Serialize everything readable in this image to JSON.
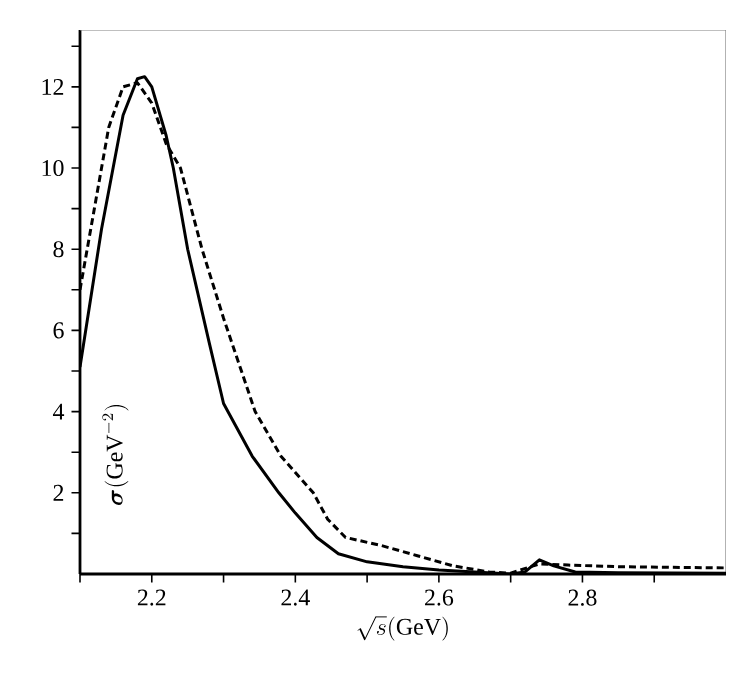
{
  "chart_data": {
    "type": "line",
    "xlabel": "\\sqrt{s}(\\mathrm{GeV})",
    "ylabel": "\\boldsymbol{\\sigma}(\\mathrm{GeV}^{-2})",
    "xlim": [
      2.1,
      3.0
    ],
    "ylim": [
      0,
      13.4
    ],
    "xticks": [
      {
        "value": 2.1,
        "label": null
      },
      2.2,
      {
        "value": 2.3,
        "label": null
      },
      2.4,
      {
        "value": 2.5,
        "label": null
      },
      2.6,
      {
        "value": 2.7,
        "label": null
      },
      2.8,
      {
        "value": 2.9,
        "label": null
      }
    ],
    "yticks": [
      {
        "value": 1,
        "label": null
      },
      2,
      {
        "value": 3,
        "label": null
      },
      4,
      {
        "value": 5,
        "label": null
      },
      6,
      {
        "value": 7,
        "label": null
      },
      8,
      {
        "value": 9,
        "label": null
      },
      10,
      {
        "value": 11,
        "label": null
      },
      12,
      {
        "value": 13,
        "label": null
      }
    ],
    "marker": "none",
    "series": [
      {
        "color": "#000000",
        "line_style": "solid",
        "x": [
          2.1,
          2.13,
          2.16,
          2.18,
          2.19,
          2.2,
          2.22,
          2.23,
          2.25,
          2.28,
          2.3,
          2.34,
          2.377,
          2.4,
          2.43,
          2.46,
          2.5,
          2.55,
          2.6,
          2.65,
          2.7,
          2.72,
          2.74,
          2.76,
          2.79,
          2.85,
          3.0
        ],
        "values": [
          5.1,
          8.5,
          11.3,
          12.2,
          12.25,
          12.0,
          10.8,
          10.0,
          8.0,
          5.7,
          4.2,
          2.9,
          2.0,
          1.5,
          0.9,
          0.5,
          0.3,
          0.18,
          0.1,
          0.05,
          0.0,
          0.05,
          0.35,
          0.2,
          0.05,
          0.03,
          0.02
        ]
      },
      {
        "color": "#000000",
        "line_style": "dashed",
        "x": [
          2.1,
          2.12,
          2.14,
          2.16,
          2.18,
          2.2,
          2.22,
          2.24,
          2.27,
          2.3,
          2.344,
          2.38,
          2.425,
          2.445,
          2.47,
          2.52,
          2.57,
          2.62,
          2.67,
          2.7,
          2.74,
          2.78,
          2.85,
          3.0
        ],
        "values": [
          7.0,
          9.0,
          11.0,
          12.0,
          12.1,
          11.6,
          10.6,
          10.0,
          8.0,
          6.3,
          4.0,
          2.9,
          2.0,
          1.35,
          0.9,
          0.7,
          0.45,
          0.2,
          0.05,
          0.02,
          0.25,
          0.22,
          0.18,
          0.15
        ]
      }
    ]
  }
}
